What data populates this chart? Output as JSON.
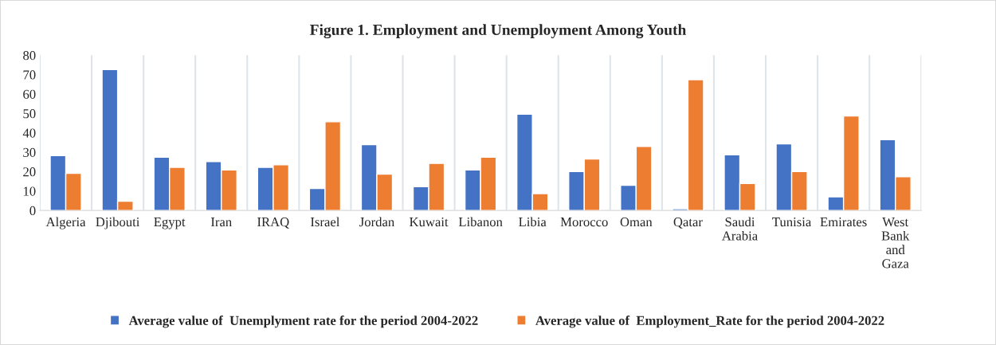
{
  "chart_data": {
    "type": "bar",
    "title": "Figure 1. Employment and Unemployment Among Youth",
    "categories": [
      "Algeria",
      "Djibouti",
      "Egypt",
      "Iran",
      "IRAQ",
      "Israel",
      "Jordan",
      "Kuwait",
      "Libanon",
      "Libia",
      "Morocco",
      "Oman",
      "Qatar",
      "Saudi\nArabia",
      "Tunisia",
      "Emirates",
      "West\nBank\nand\nGaza"
    ],
    "series": [
      {
        "name": "Average value of  Unemplyment rate for the period 2004-2022",
        "color": "#4472c4",
        "values": [
          28.3,
          72.6,
          27.4,
          25.2,
          22.2,
          11.3,
          33.9,
          12.2,
          20.9,
          49.6,
          20,
          13,
          0.9,
          28.7,
          34.3,
          7,
          36.5
        ]
      },
      {
        "name": "Average value of  Employment_Rate for the period 2004-2022",
        "color": "#ed7d31",
        "values": [
          19.1,
          4.8,
          22.2,
          20.9,
          23.5,
          45.7,
          18.7,
          24.3,
          27.4,
          8.7,
          26.5,
          33,
          67.4,
          13.9,
          20,
          48.7,
          17.4
        ]
      }
    ],
    "ylim": [
      0,
      80
    ],
    "yticks": [
      0,
      10,
      20,
      30,
      40,
      50,
      60,
      70,
      80
    ],
    "grid": "x",
    "legend": "bottom"
  }
}
